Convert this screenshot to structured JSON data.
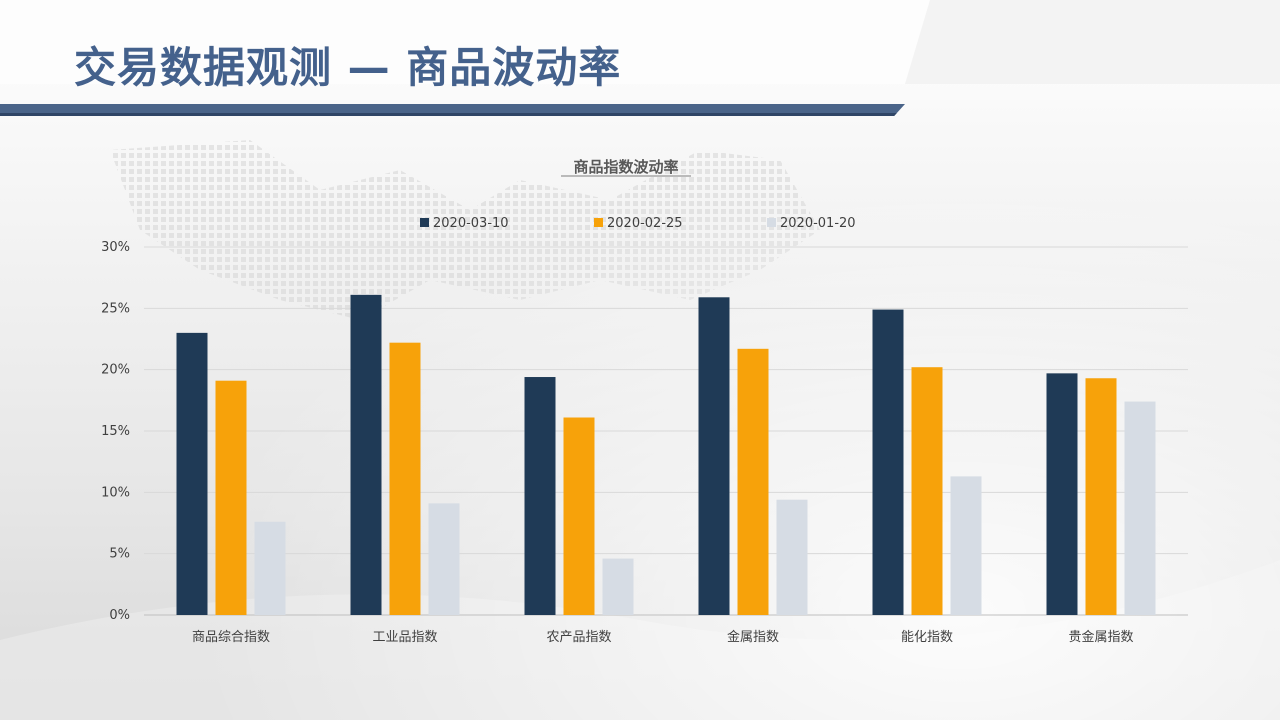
{
  "page": {
    "title": "交易数据观测 — 商品波动率"
  },
  "chart_data": {
    "type": "bar",
    "title": "商品指数波动率",
    "categories": [
      "商品综合指数",
      "工业品指数",
      "农产品指数",
      "金属指数",
      "能化指数",
      "贵金属指数"
    ],
    "series": [
      {
        "name": "2020-03-10",
        "color": "#1f3a56",
        "values": [
          23.0,
          26.1,
          19.4,
          25.9,
          24.9,
          19.7
        ]
      },
      {
        "name": "2020-02-25",
        "color": "#f7a20a",
        "values": [
          19.1,
          22.2,
          16.1,
          21.7,
          20.2,
          19.3
        ]
      },
      {
        "name": "2020-01-20",
        "color": "#d6dce4",
        "values": [
          7.6,
          9.1,
          4.6,
          9.4,
          11.3,
          17.4
        ]
      }
    ],
    "ylim": [
      0,
      30
    ],
    "yticks": [
      "0%",
      "5%",
      "10%",
      "15%",
      "20%",
      "25%",
      "30%"
    ],
    "grid": true,
    "legend_position": "top"
  }
}
